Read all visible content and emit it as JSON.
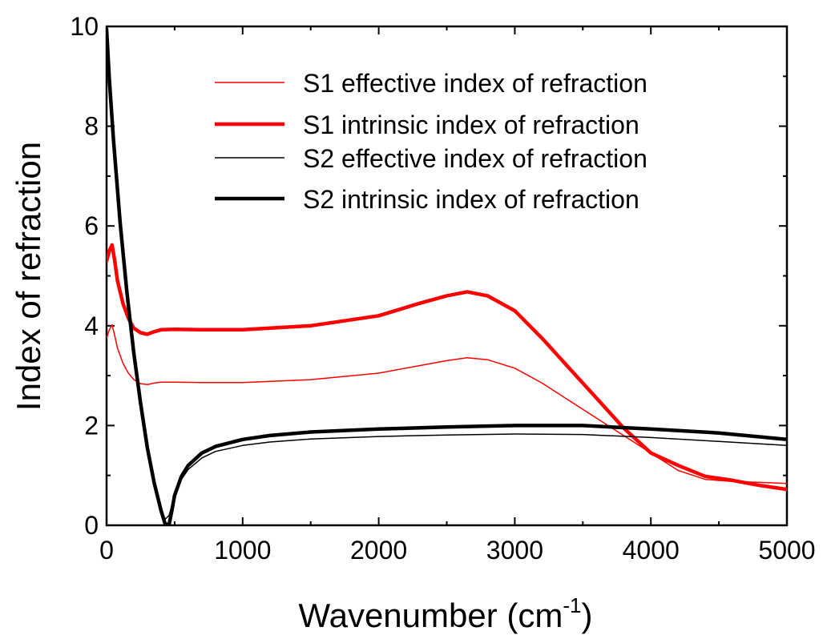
{
  "chart_data": {
    "type": "line",
    "title": "",
    "xlabel": "Wavenumber (cm",
    "xlabel_superscript": "-1",
    "xlabel_suffix": ")",
    "ylabel": "Index of refraction",
    "xlim": [
      0,
      5000
    ],
    "ylim": [
      0,
      10
    ],
    "xticks": [
      0,
      1000,
      2000,
      3000,
      4000,
      5000
    ],
    "yticks": [
      0,
      2,
      4,
      6,
      8,
      10
    ],
    "grid": false,
    "legend_position": "top-right",
    "series": [
      {
        "name": "S1 effective index of refraction",
        "color": "#ff0000",
        "weight": "thin",
        "x": [
          0,
          20,
          40,
          60,
          80,
          120,
          160,
          200,
          250,
          300,
          350,
          400,
          500,
          700,
          1000,
          1500,
          2000,
          2300,
          2500,
          2650,
          2800,
          3000,
          3200,
          3400,
          3600,
          3800,
          4000,
          4200,
          4400,
          4600,
          4800,
          5000
        ],
        "y": [
          3.75,
          3.92,
          4.02,
          3.8,
          3.55,
          3.25,
          3.05,
          2.92,
          2.84,
          2.82,
          2.85,
          2.87,
          2.87,
          2.86,
          2.86,
          2.92,
          3.05,
          3.2,
          3.3,
          3.36,
          3.32,
          3.15,
          2.85,
          2.5,
          2.15,
          1.8,
          1.45,
          1.1,
          0.92,
          0.88,
          0.86,
          0.84
        ]
      },
      {
        "name": "S1 intrinsic index of refraction",
        "color": "#ff0000",
        "weight": "thick",
        "x": [
          0,
          20,
          40,
          60,
          80,
          120,
          160,
          200,
          250,
          300,
          350,
          400,
          500,
          700,
          1000,
          1500,
          2000,
          2300,
          2500,
          2650,
          2800,
          3000,
          3200,
          3400,
          3600,
          3800,
          4000,
          4200,
          4400,
          4600,
          4800,
          5000
        ],
        "y": [
          5.3,
          5.5,
          5.62,
          5.3,
          4.9,
          4.45,
          4.15,
          3.95,
          3.86,
          3.83,
          3.88,
          3.92,
          3.93,
          3.92,
          3.92,
          4.0,
          4.2,
          4.45,
          4.6,
          4.68,
          4.6,
          4.3,
          3.75,
          3.15,
          2.55,
          1.95,
          1.45,
          1.2,
          0.98,
          0.9,
          0.8,
          0.72
        ]
      },
      {
        "name": "S2 effective index of refraction",
        "color": "#000000",
        "weight": "thin",
        "x": [
          0,
          20,
          50,
          100,
          150,
          200,
          250,
          300,
          350,
          400,
          430,
          460,
          480,
          500,
          550,
          600,
          700,
          800,
          1000,
          1200,
          1500,
          2000,
          2500,
          3000,
          3500,
          4000,
          4500,
          5000
        ],
        "y": [
          9.9,
          8.9,
          7.7,
          6.0,
          4.6,
          3.4,
          2.4,
          1.5,
          0.85,
          0.35,
          0.12,
          0.2,
          0.4,
          0.62,
          0.92,
          1.12,
          1.35,
          1.48,
          1.6,
          1.67,
          1.73,
          1.78,
          1.81,
          1.83,
          1.82,
          1.76,
          1.68,
          1.6
        ]
      },
      {
        "name": "S2 intrinsic index of refraction",
        "color": "#000000",
        "weight": "thick",
        "x": [
          0,
          20,
          50,
          100,
          150,
          200,
          250,
          300,
          350,
          400,
          430,
          460,
          480,
          500,
          550,
          600,
          700,
          800,
          1000,
          1200,
          1500,
          2000,
          2500,
          3000,
          3500,
          4000,
          4500,
          5000
        ],
        "y": [
          9.95,
          8.95,
          7.75,
          6.05,
          4.65,
          3.45,
          2.45,
          1.55,
          0.85,
          0.3,
          0.03,
          0.02,
          0.3,
          0.6,
          0.98,
          1.2,
          1.45,
          1.58,
          1.72,
          1.8,
          1.87,
          1.93,
          1.97,
          2.0,
          2.0,
          1.93,
          1.85,
          1.72
        ]
      }
    ]
  }
}
